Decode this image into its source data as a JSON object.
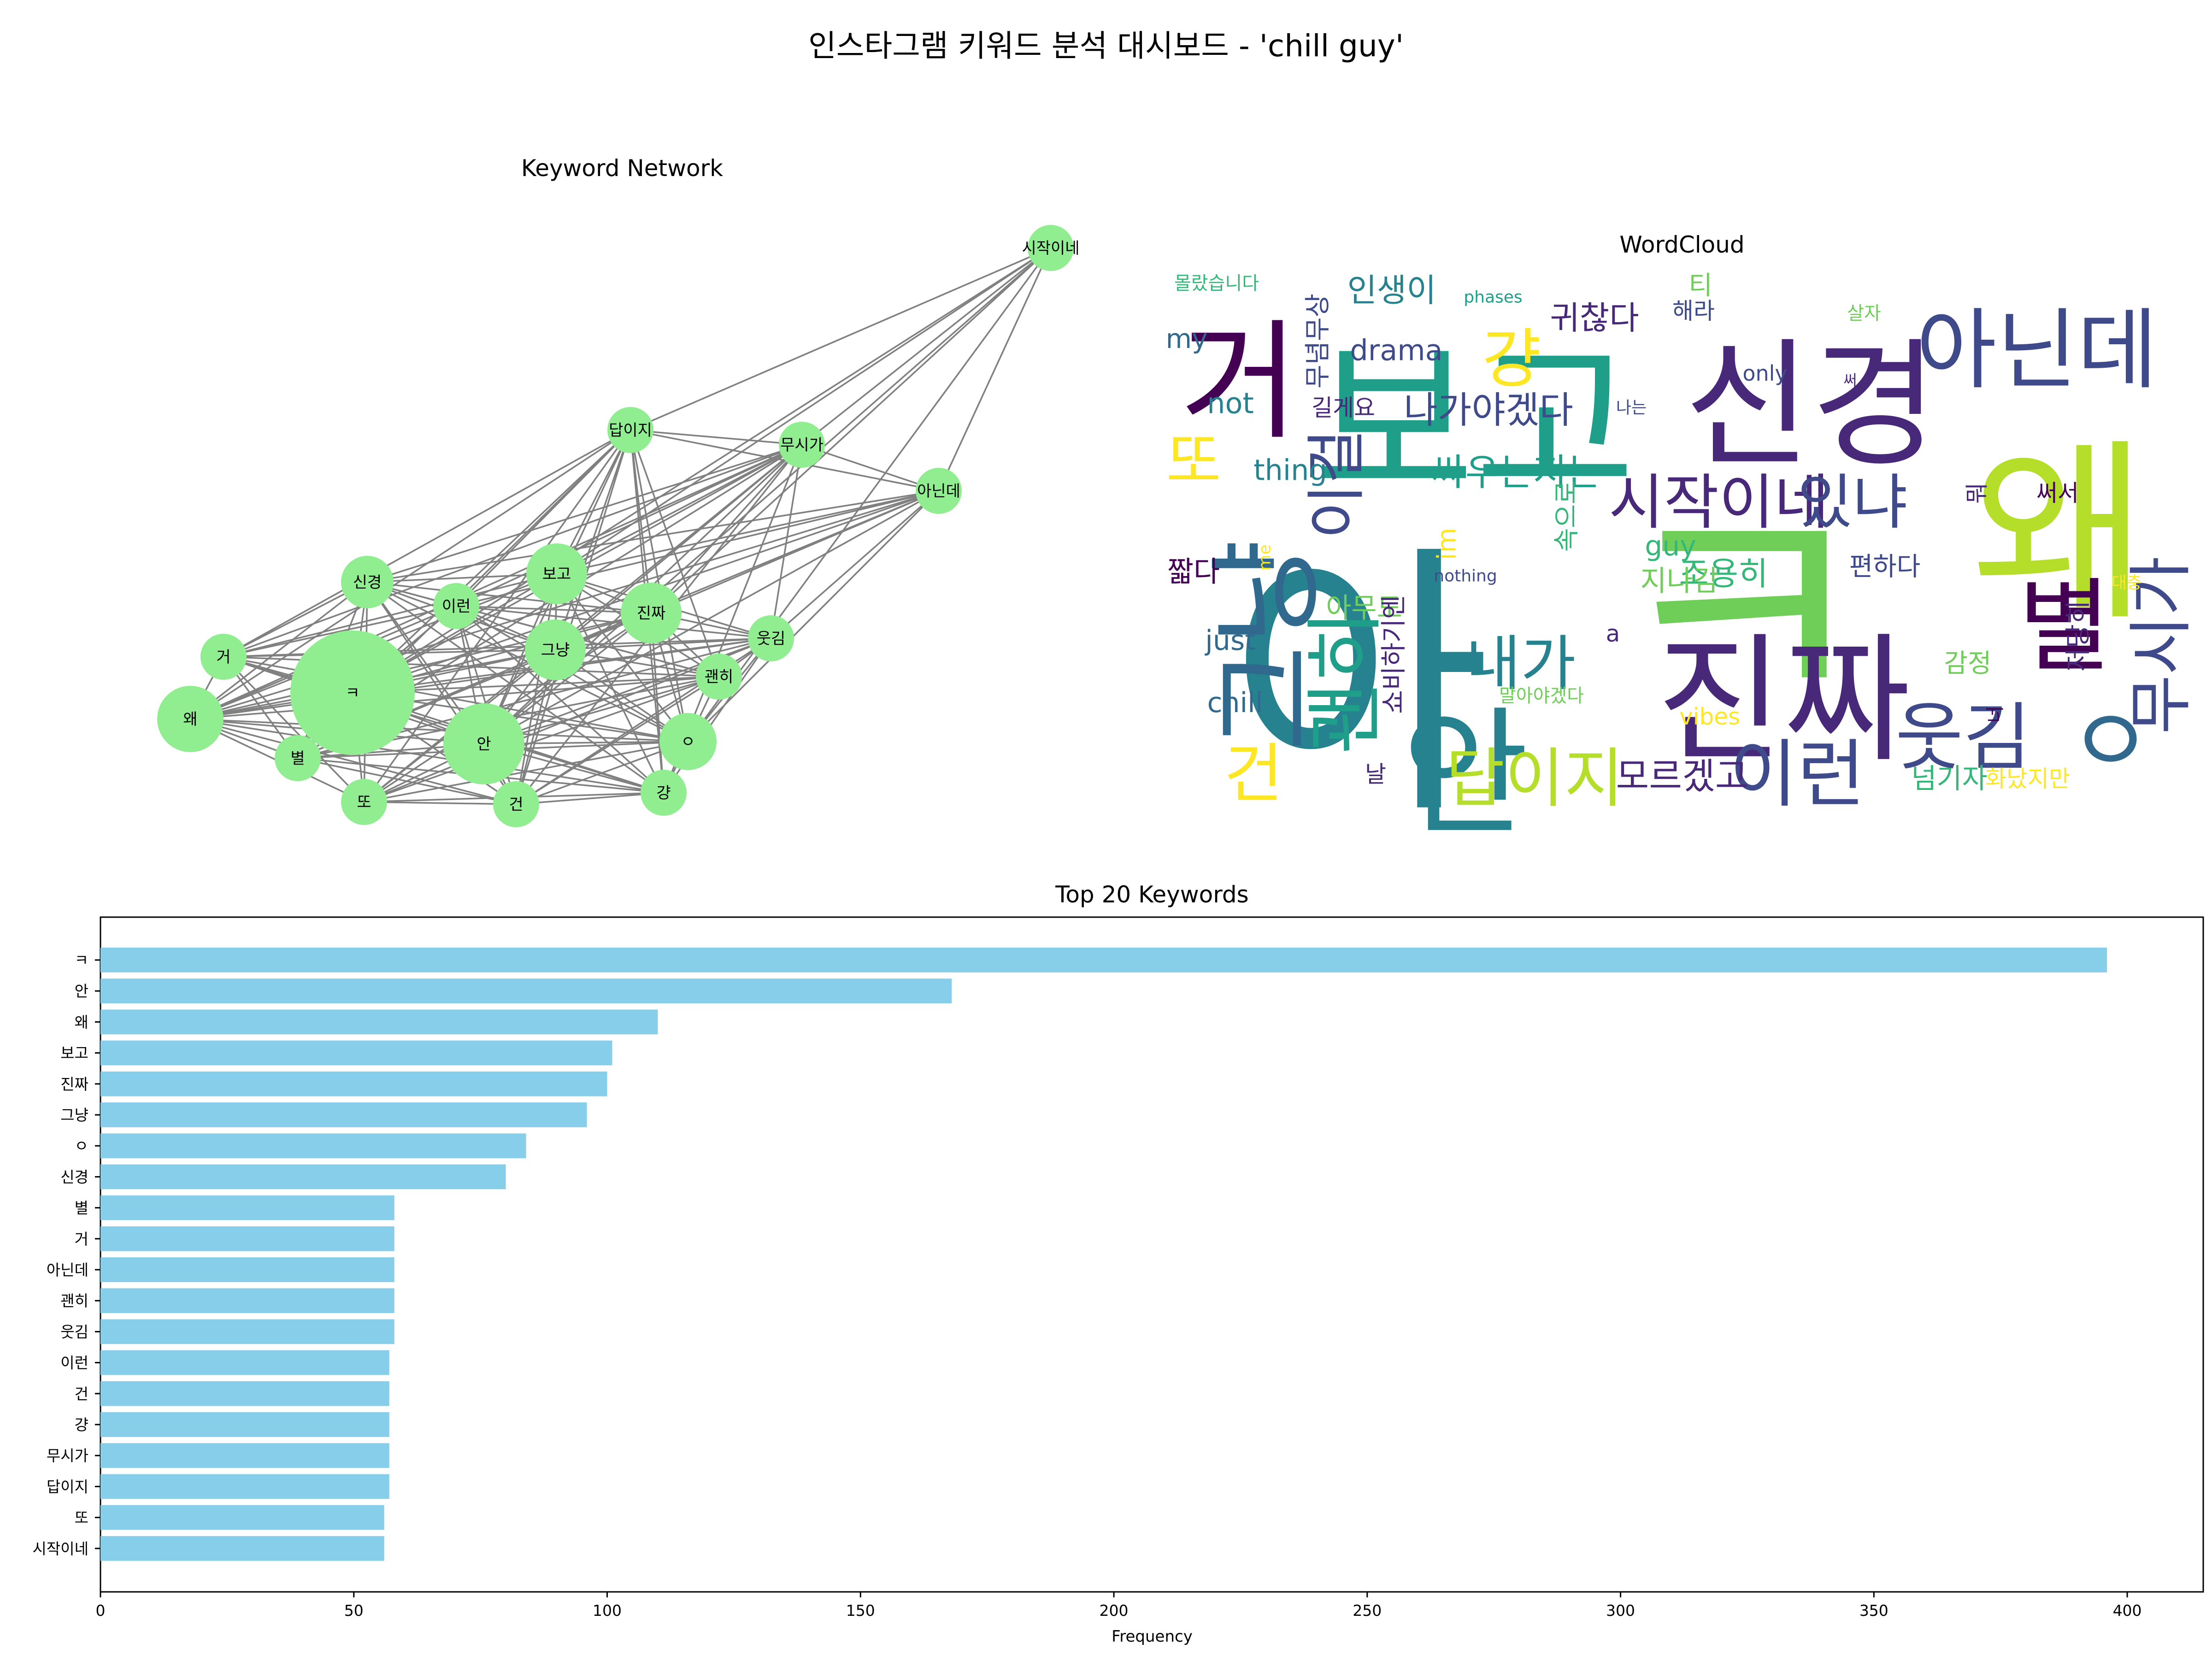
{
  "title": "인스타그램 키워드 분석 대시보드 - 'chill guy'",
  "network": {
    "title": "Keyword Network",
    "node_color": "#90ee90",
    "edge_color": "#808080"
  },
  "wordcloud": {
    "title": "WordCloud"
  },
  "chart_data": {
    "type": "bar",
    "orientation": "horizontal",
    "title": "Top 20 Keywords",
    "xlabel": "Frequency",
    "ylabel": "",
    "xlim": [
      0,
      415
    ],
    "xticks": [
      "0",
      "50",
      "100",
      "150",
      "200",
      "250",
      "300",
      "350",
      "400"
    ],
    "bar_color": "#87ceeb",
    "categories": [
      "ㅋ",
      "안",
      "왜",
      "보고",
      "진짜",
      "그냥",
      "ㅇ",
      "신경",
      "별",
      "거",
      "아닌데",
      "괜히",
      "웃김",
      "이런",
      "건",
      "걍",
      "무시가",
      "답이지",
      "또",
      "시작이네"
    ],
    "values": [
      396,
      168,
      110,
      101,
      100,
      96,
      84,
      80,
      58,
      58,
      58,
      58,
      58,
      57,
      57,
      57,
      57,
      57,
      56,
      56
    ]
  }
}
